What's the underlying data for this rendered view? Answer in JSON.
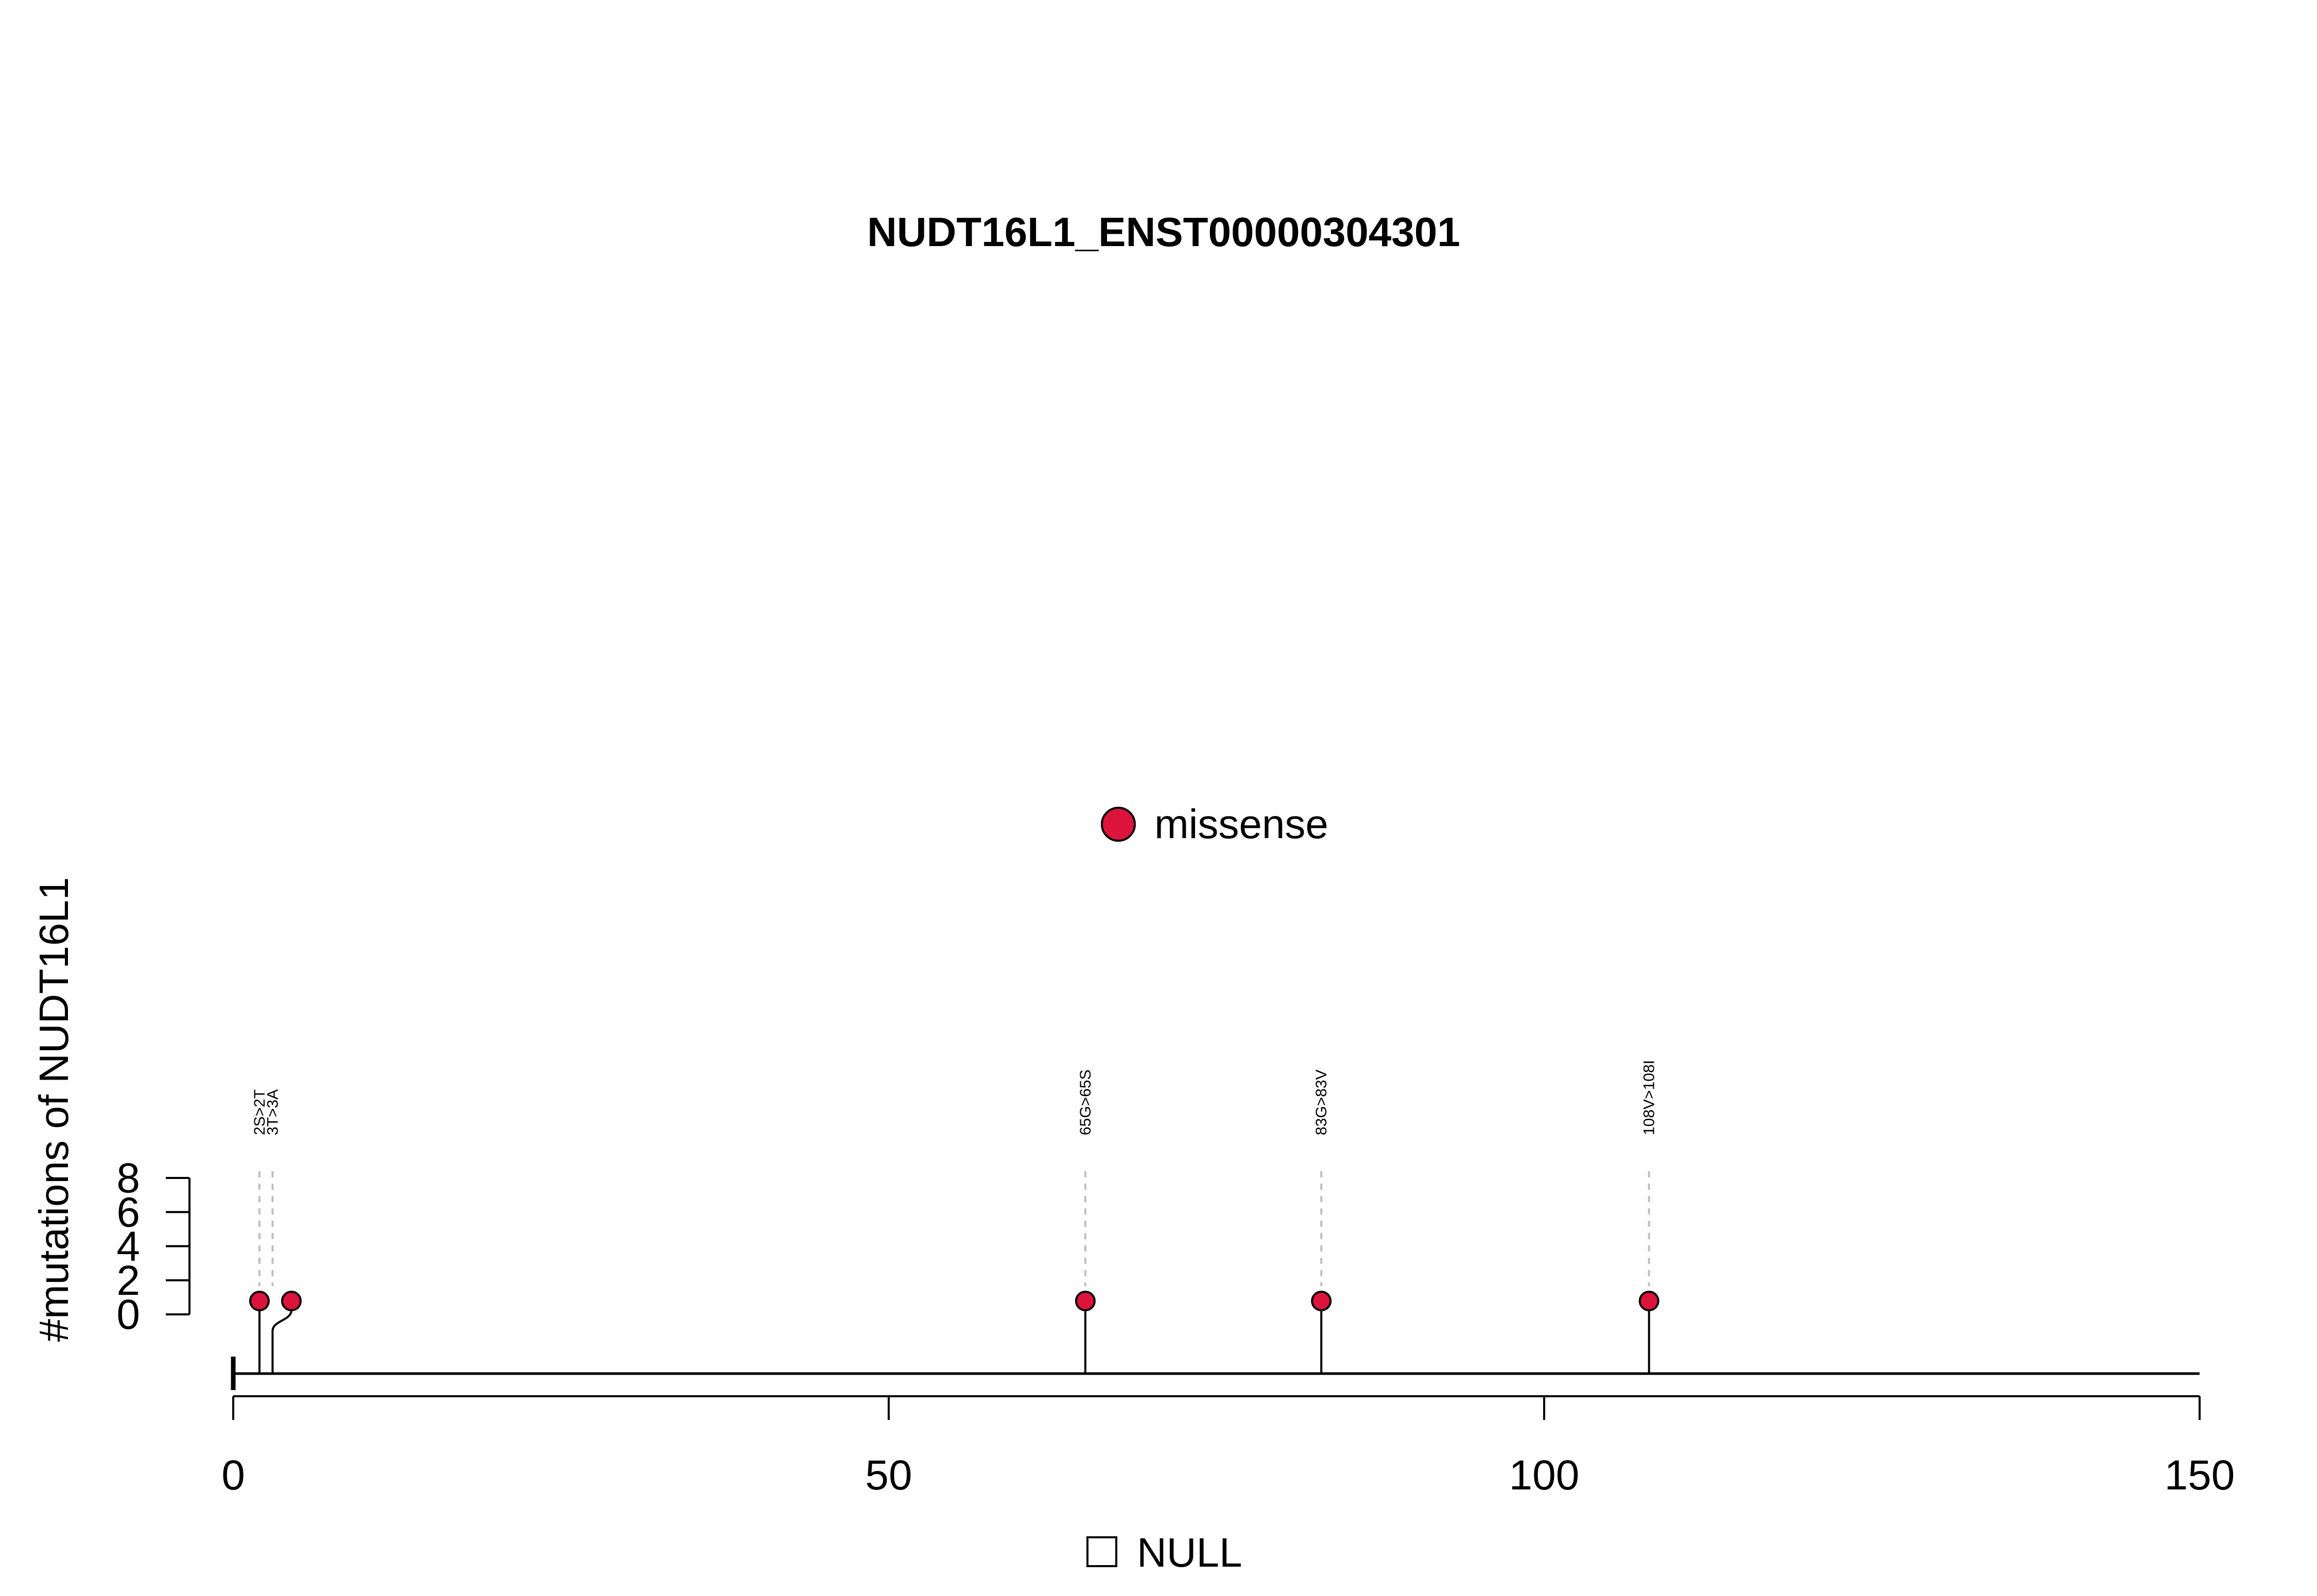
{
  "chart_data": {
    "type": "lollipop",
    "title": "NUDT16L1_ENST00000304301",
    "ylabel": "#mutations of NUDT16L1",
    "xlim": [
      0,
      150
    ],
    "x_ticks": [
      0,
      50,
      100,
      150
    ],
    "y_ticks": [
      0,
      2,
      4,
      6,
      8
    ],
    "ylim": [
      0,
      8
    ],
    "colors": {
      "missense": "#DC143C",
      "axis": "#000000",
      "guide": "#BEBEBE"
    },
    "legend": {
      "items": [
        {
          "label": "missense",
          "color": "#DC143C",
          "shape": "circle"
        }
      ]
    },
    "domain_legend": {
      "items": [
        {
          "label": "NULL",
          "color": "#FFFFFF",
          "shape": "square"
        }
      ]
    },
    "mutations": [
      {
        "label": "2S>2T",
        "position": 2,
        "count": 1,
        "type": "missense"
      },
      {
        "label": "3T>3A",
        "position": 3,
        "count": 1,
        "type": "missense"
      },
      {
        "label": "65G>65S",
        "position": 65,
        "count": 1,
        "type": "missense"
      },
      {
        "label": "83G>83V",
        "position": 83,
        "count": 1,
        "type": "missense"
      },
      {
        "label": "108V>108I",
        "position": 108,
        "count": 1,
        "type": "missense"
      }
    ]
  }
}
